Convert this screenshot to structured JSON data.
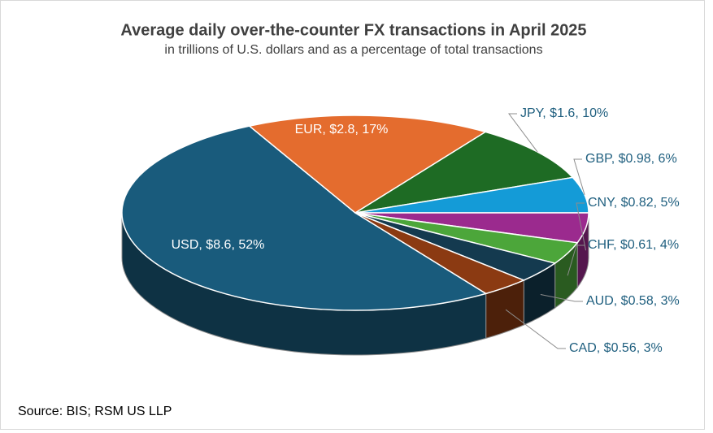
{
  "chart_data": {
    "type": "pie3d",
    "title": "Average daily over-the-counter FX transactions in April 2025",
    "subtitle": "in trillions of U.S. dollars and as a percentage of total transactions",
    "source": "Source: BIS; RSM US LLP",
    "categories": [
      "USD",
      "EUR",
      "JPY",
      "GBP",
      "CNY",
      "CHF",
      "AUD",
      "CAD"
    ],
    "values": [
      8.6,
      2.8,
      1.6,
      0.98,
      0.82,
      0.61,
      0.58,
      0.56
    ],
    "value_labels": [
      "USD, $8.6, 52%",
      "EUR, $2.8, 17%",
      "JPY, $1.6, 10%",
      "GBP, $0.98, 6%",
      "CNY, $0.82, 5%",
      "CHF, $0.61, 4%",
      "AUD, $0.58, 3%",
      "CAD, $0.56, 3%"
    ],
    "colors": [
      "#195b7c",
      "#e46c2e",
      "#1e6b24",
      "#149bd7",
      "#9b2a8e",
      "#4ca63a",
      "#143a4f",
      "#8b3a12"
    ]
  }
}
